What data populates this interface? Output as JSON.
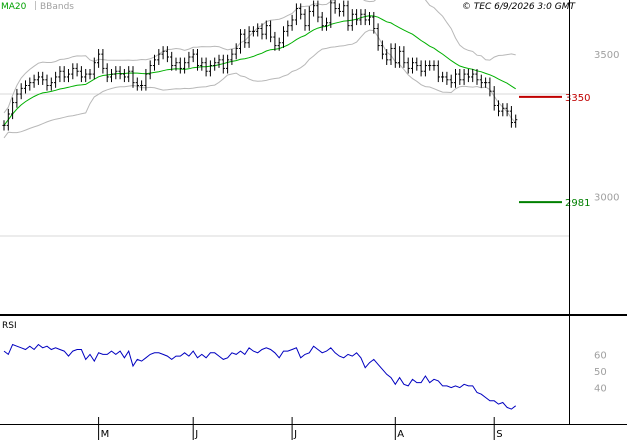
{
  "header": {
    "legend": [
      {
        "label": "MA20",
        "color": "#00a000"
      },
      {
        "label": "BBands",
        "color": "#a0a0a0"
      }
    ],
    "copyright": "© TEC 6/9/2026 3:0 GMT"
  },
  "rsi_panel": {
    "label": "RSI"
  },
  "colors": {
    "price": "#000000",
    "ma20": "#00b000",
    "bbands": "#b8b8b8",
    "rsi": "#0000c0",
    "resistance": "#c00000",
    "support": "#008000",
    "frame": "#000000",
    "grid": "#d8d8d8"
  },
  "chart_data": [
    {
      "type": "ohlc",
      "x_labels": [
        {
          "label": "M",
          "index": 22
        },
        {
          "label": "J",
          "index": 44
        },
        {
          "label": "J",
          "index": 67
        },
        {
          "label": "A",
          "index": 91
        },
        {
          "label": "S",
          "index": 114
        }
      ],
      "y_ticks": [
        3000,
        3500
      ],
      "ylim": [
        2690,
        3690
      ],
      "levels": [
        {
          "label": "3350",
          "value": 3350,
          "kind": "resistance"
        },
        {
          "label": "2981",
          "value": 2981,
          "kind": "support"
        }
      ],
      "close": [
        3250,
        3290,
        3330,
        3360,
        3380,
        3390,
        3400,
        3410,
        3420,
        3410,
        3390,
        3400,
        3420,
        3440,
        3420,
        3430,
        3450,
        3440,
        3420,
        3430,
        3430,
        3470,
        3500,
        3450,
        3420,
        3430,
        3440,
        3430,
        3420,
        3440,
        3400,
        3390,
        3390,
        3430,
        3460,
        3480,
        3500,
        3510,
        3490,
        3460,
        3470,
        3450,
        3470,
        3490,
        3500,
        3460,
        3470,
        3440,
        3460,
        3470,
        3480,
        3450,
        3480,
        3500,
        3520,
        3570,
        3540,
        3580,
        3580,
        3590,
        3570,
        3600,
        3560,
        3530,
        3540,
        3580,
        3600,
        3620,
        3660,
        3640,
        3600,
        3650,
        3670,
        3630,
        3600,
        3610,
        3680,
        3660,
        3650,
        3670,
        3600,
        3640,
        3620,
        3640,
        3620,
        3630,
        3590,
        3530,
        3500,
        3480,
        3520,
        3470,
        3510,
        3470,
        3450,
        3470,
        3460,
        3440,
        3460,
        3460,
        3460,
        3420,
        3420,
        3410,
        3400,
        3430,
        3410,
        3430,
        3420,
        3430,
        3410,
        3400,
        3400,
        3370,
        3320,
        3300,
        3310,
        3300,
        3260,
        3270
      ]
    },
    {
      "type": "line",
      "title": "RSI",
      "y_ticks": [
        40,
        50,
        60
      ],
      "ylim": [
        18,
        82
      ],
      "values": [
        62,
        60,
        66,
        65,
        64,
        63,
        65,
        63,
        66,
        64,
        65,
        63,
        64,
        63,
        62,
        59,
        62,
        63,
        63,
        57,
        60,
        56,
        61,
        60,
        60,
        62,
        60,
        62,
        58,
        62,
        53,
        57,
        56,
        58,
        60,
        61,
        61,
        60,
        59,
        57,
        59,
        59,
        61,
        59,
        62,
        58,
        60,
        58,
        61,
        61,
        59,
        57,
        58,
        61,
        60,
        62,
        60,
        64,
        62,
        61,
        63,
        64,
        63,
        61,
        58,
        62,
        62,
        63,
        64,
        58,
        60,
        61,
        65,
        63,
        61,
        62,
        64,
        61,
        59,
        58,
        60,
        59,
        61,
        58,
        52,
        55,
        57,
        54,
        51,
        48,
        46,
        42,
        46,
        42,
        41,
        45,
        43,
        43,
        47,
        43,
        45,
        44,
        41,
        41,
        40,
        41,
        40,
        42,
        41,
        41,
        37,
        36,
        34,
        32,
        32,
        30,
        31,
        28,
        27,
        29
      ]
    }
  ]
}
